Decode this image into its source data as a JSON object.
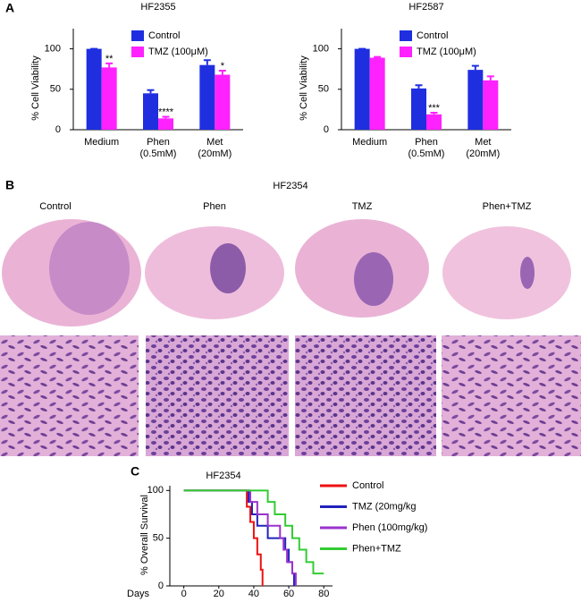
{
  "panel_labels": [
    "A",
    "B",
    "C"
  ],
  "histology": {
    "title": "HF2354",
    "columns": [
      "Control",
      "Phen",
      "TMZ",
      "Phen+TMZ"
    ]
  },
  "chart_data": [
    {
      "type": "bar",
      "title": "HF2355",
      "y_label": "% Cell Viability",
      "categories": [
        "Medium",
        "Phen (0.5mM)",
        "Met (20mM)"
      ],
      "series": [
        {
          "name": "Control",
          "color": "#1f2fe0",
          "values": [
            100,
            45,
            80
          ],
          "errors": [
            0,
            4,
            6
          ]
        },
        {
          "name": "TMZ  (100μM)",
          "color": "#ff22ff",
          "values": [
            77,
            14,
            68
          ],
          "errors": [
            5,
            2,
            5
          ],
          "significance": [
            "**",
            "****",
            "*"
          ]
        }
      ],
      "ylim": [
        0,
        125
      ],
      "yticks": [
        0,
        50,
        100
      ]
    },
    {
      "type": "bar",
      "title": "HF2587",
      "y_label": "% Cell Viability",
      "categories": [
        "Medium",
        "Phen (0.5mM)",
        "Met (20mM)"
      ],
      "series": [
        {
          "name": "Control",
          "color": "#1f2fe0",
          "values": [
            100,
            51,
            74
          ],
          "errors": [
            0,
            4,
            5
          ]
        },
        {
          "name": "TMZ  (100μM)",
          "color": "#ff22ff",
          "values": [
            89,
            19,
            61
          ],
          "errors": [
            1,
            2,
            5
          ],
          "significance": [
            null,
            "***",
            null
          ]
        }
      ],
      "ylim": [
        0,
        125
      ],
      "yticks": [
        0,
        50,
        100
      ]
    },
    {
      "type": "step",
      "title": "HF2354",
      "y_label": "% Overall  Survival",
      "x_label": "Days",
      "series": [
        {
          "name": "Control",
          "color": "#ee1111",
          "x": [
            0,
            36,
            38,
            40,
            42,
            44,
            45
          ],
          "values": [
            100,
            83,
            67,
            50,
            33,
            17,
            0
          ]
        },
        {
          "name": "TMZ  (20mg/kg",
          "color": "#2222bb",
          "x": [
            0,
            37,
            39,
            42,
            48,
            58,
            60,
            62,
            63
          ],
          "values": [
            100,
            88,
            75,
            63,
            50,
            38,
            25,
            13,
            0
          ]
        },
        {
          "name": " Phen (100mg/kg)",
          "color": "#9933cc",
          "x": [
            0,
            38,
            42,
            48,
            55,
            57,
            59,
            62,
            64
          ],
          "values": [
            100,
            88,
            75,
            63,
            50,
            38,
            25,
            13,
            0
          ]
        },
        {
          "name": "Phen+TMZ",
          "color": "#33cc33",
          "x": [
            0,
            48,
            52,
            58,
            62,
            66,
            70,
            74,
            80
          ],
          "values": [
            100,
            88,
            75,
            63,
            50,
            38,
            25,
            13,
            13
          ]
        }
      ],
      "xlim": [
        -8,
        85
      ],
      "xticks": [
        0,
        20,
        40,
        60,
        80
      ],
      "ylim": [
        0,
        105
      ],
      "yticks": [
        0,
        50,
        100
      ]
    }
  ]
}
